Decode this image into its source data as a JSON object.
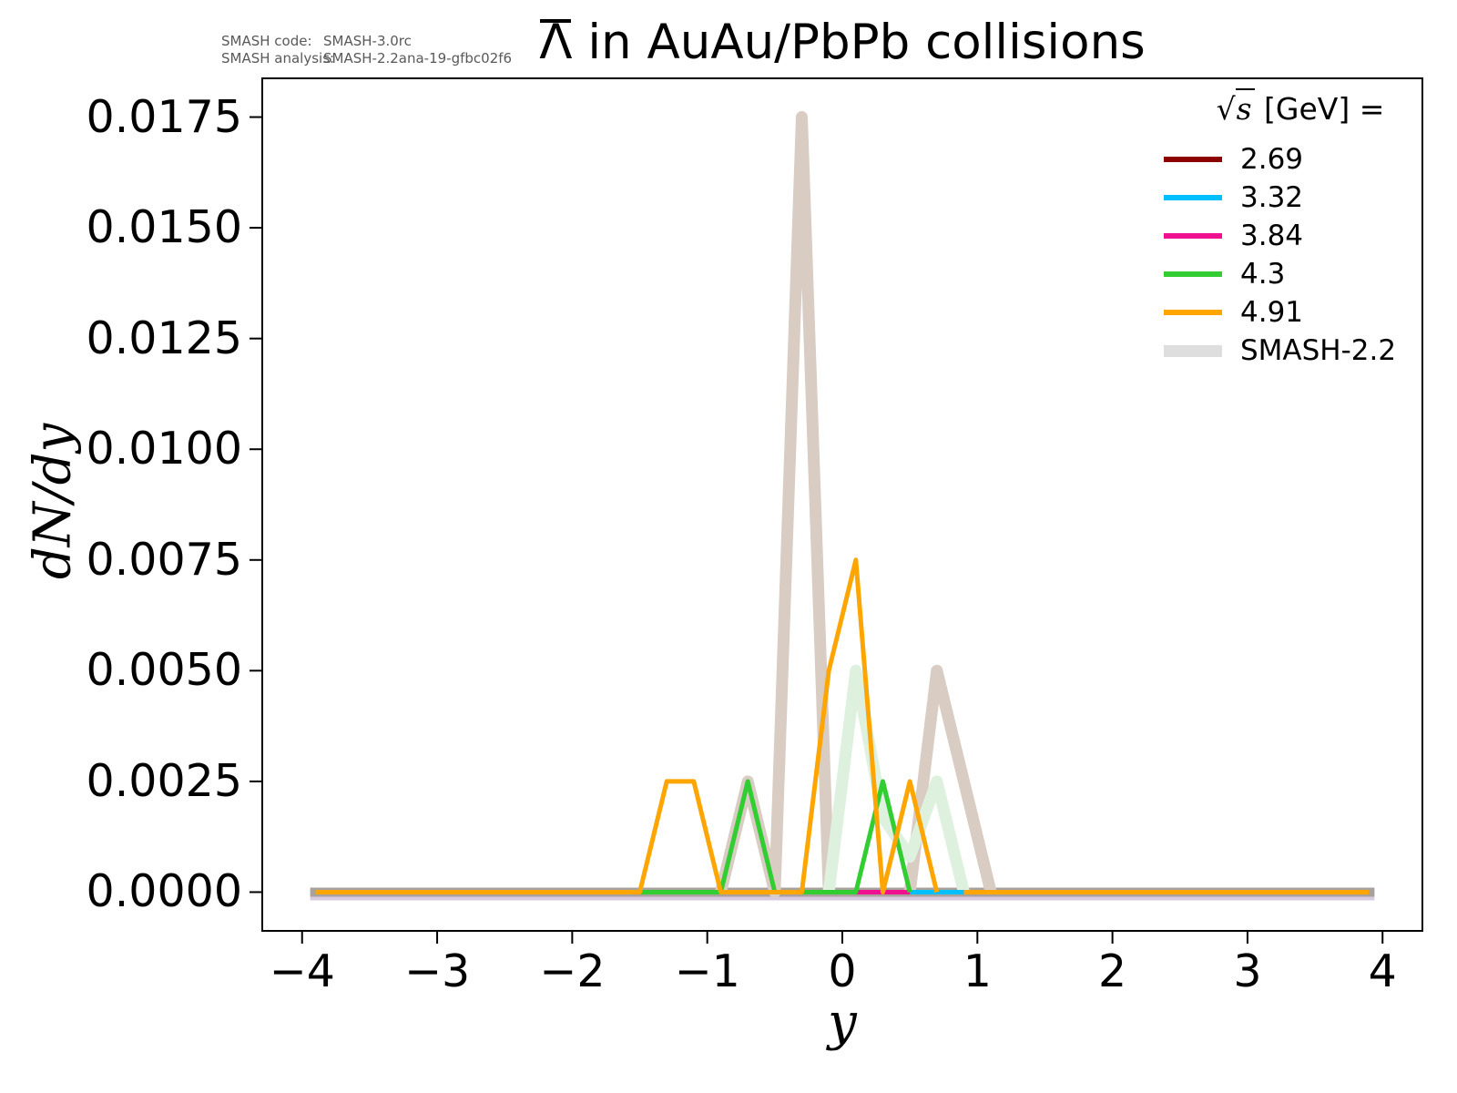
{
  "annotation": {
    "code_label": "SMASH code:",
    "code_value": "SMASH-3.0rc",
    "analysis_label": "SMASH analysis:",
    "analysis_value": "SMASH-2.2ana-19-gfbc02f6"
  },
  "title": {
    "particle": "Λ",
    "suffix": " in AuAu/PbPb collisions"
  },
  "legend": {
    "title_prefix": "√",
    "title_arg": "s",
    "title_suffix": " [GeV] =",
    "entries": [
      {
        "label": "2.69",
        "color": "#8b0000",
        "thick": false
      },
      {
        "label": "3.32",
        "color": "#00bfff",
        "thick": false
      },
      {
        "label": "3.84",
        "color": "#ef1190",
        "thick": false
      },
      {
        "label": "4.3",
        "color": "#32cd32",
        "thick": false
      },
      {
        "label": "4.91",
        "color": "#ffa500",
        "thick": false
      },
      {
        "label": "SMASH-2.2",
        "color": "#dedede",
        "thick": true
      }
    ]
  },
  "chart_data": {
    "type": "line",
    "title": "Λ̄ in AuAu/PbPb collisions",
    "xlabel": "y",
    "ylabel": "dN/dy",
    "xlim": [
      -4.295,
      4.295
    ],
    "ylim": [
      -0.000875,
      0.018375
    ],
    "grid": false,
    "legend_position": "upper right",
    "x_ticks": [
      {
        "v": -4,
        "label": "−4"
      },
      {
        "v": -3,
        "label": "−3"
      },
      {
        "v": -2,
        "label": "−2"
      },
      {
        "v": -1,
        "label": "−1"
      },
      {
        "v": 0,
        "label": "0"
      },
      {
        "v": 1,
        "label": "1"
      },
      {
        "v": 2,
        "label": "2"
      },
      {
        "v": 3,
        "label": "3"
      },
      {
        "v": 4,
        "label": "4"
      }
    ],
    "y_ticks": [
      {
        "v": 0.0,
        "label": "0.0000"
      },
      {
        "v": 0.0025,
        "label": "0.0025"
      },
      {
        "v": 0.005,
        "label": "0.0050"
      },
      {
        "v": 0.0075,
        "label": "0.0075"
      },
      {
        "v": 0.01,
        "label": "0.0100"
      },
      {
        "v": 0.0125,
        "label": "0.0125"
      },
      {
        "v": 0.015,
        "label": "0.0150"
      },
      {
        "v": 0.0175,
        "label": "0.0175"
      }
    ],
    "background_series": [
      {
        "name": "SMASH-2.2 baseline halo",
        "color": "#d8cbe0",
        "width": 13,
        "py_offset": 2.5,
        "points": [
          [
            -3.94,
            0
          ],
          [
            3.94,
            0
          ]
        ]
      },
      {
        "name": "SMASH-2.2 baseline",
        "color": "#a8a19c",
        "width": 10,
        "py_offset": 0,
        "points": [
          [
            -3.94,
            0
          ],
          [
            3.94,
            0
          ]
        ]
      },
      {
        "name": "SMASH-2.2 at 2.69 left peaks",
        "color": "#d8ccc3",
        "width": 13,
        "py_offset": 0,
        "points": [
          [
            -0.9,
            0
          ],
          [
            -0.7,
            0.0025
          ],
          [
            -0.5,
            0
          ],
          [
            -0.3,
            0.0175
          ],
          [
            -0.1,
            0
          ]
        ]
      },
      {
        "name": "SMASH-2.2 at 2.69 right peak",
        "color": "#d8ccc3",
        "width": 13,
        "py_offset": 0,
        "points": [
          [
            0.5,
            0
          ],
          [
            0.7,
            0.005
          ],
          [
            0.9,
            0.0025
          ],
          [
            1.1,
            0
          ]
        ]
      },
      {
        "name": "SMASH-2.2 at 4.3",
        "color": "#def1de",
        "width": 13,
        "py_offset": 0,
        "points": [
          [
            -0.1,
            0
          ],
          [
            0.1,
            0.005
          ],
          [
            0.3,
            0.0017
          ],
          [
            0.5,
            0.0008
          ],
          [
            0.7,
            0.0025
          ],
          [
            0.9,
            0
          ]
        ]
      },
      {
        "name": "SMASH-2.2 at 3.84 overlap strip",
        "color": "#dccfe3",
        "width": 5,
        "py_offset": 0,
        "points": [
          [
            0.5,
            0
          ],
          [
            0.9,
            0
          ]
        ]
      }
    ],
    "series": [
      {
        "name": "2.69",
        "color": "#8b0000",
        "width": 5,
        "segments": [
          [
            [
              -3.9,
              0
            ],
            [
              3.9,
              0
            ]
          ]
        ]
      },
      {
        "name": "3.32",
        "color": "#00bfff",
        "width": 5,
        "segments": [
          [
            [
              -3.9,
              0
            ],
            [
              3.9,
              0
            ]
          ]
        ]
      },
      {
        "name": "3.84",
        "color": "#ef1190",
        "width": 5,
        "segments": [
          [
            [
              -3.9,
              0
            ],
            [
              0.5,
              0
            ]
          ],
          [
            [
              0.9,
              0
            ],
            [
              3.9,
              0
            ]
          ]
        ]
      },
      {
        "name": "4.3",
        "color": "#32cd32",
        "width": 5,
        "segments": [
          [
            [
              -3.9,
              0
            ],
            [
              -0.9,
              0
            ],
            [
              -0.7,
              0.0025
            ],
            [
              -0.5,
              0
            ],
            [
              0.1,
              0
            ],
            [
              0.3,
              0.0025
            ],
            [
              0.5,
              0
            ]
          ],
          [
            [
              0.9,
              0
            ],
            [
              3.9,
              0
            ]
          ]
        ]
      },
      {
        "name": "4.91",
        "color": "#ffa500",
        "width": 5,
        "segments": [
          [
            [
              -3.9,
              0
            ],
            [
              -1.5,
              0
            ],
            [
              -1.3,
              0.0025
            ],
            [
              -1.1,
              0.0025
            ],
            [
              -0.9,
              0
            ],
            [
              -0.3,
              0
            ],
            [
              -0.1,
              0.005
            ],
            [
              0.1,
              0.0075
            ],
            [
              0.3,
              0
            ],
            [
              0.5,
              0.0025
            ],
            [
              0.7,
              0
            ]
          ],
          [
            [
              0.9,
              0
            ],
            [
              3.9,
              0
            ]
          ]
        ]
      }
    ]
  }
}
